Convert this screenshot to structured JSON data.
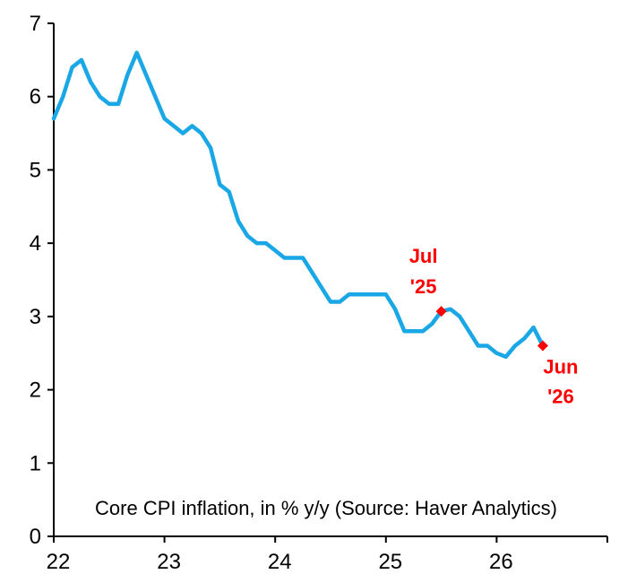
{
  "chart_data": {
    "type": "line",
    "title": "",
    "xlabel": "",
    "ylabel": "",
    "note": "Core CPI inflation, in % y/y (Source: Haver Analytics)",
    "x_ticks": [
      "22",
      "23",
      "24",
      "25",
      "26"
    ],
    "y_ticks": [
      "0",
      "1",
      "2",
      "3",
      "4",
      "5",
      "6",
      "7"
    ],
    "xlim": [
      2022.0,
      2027.0
    ],
    "ylim": [
      0,
      7
    ],
    "grid": false,
    "legend": "none",
    "colors": {
      "line": "#1aa7e6",
      "marker": "#ff0000",
      "axis": "#000000"
    },
    "series": [
      {
        "x": [
          2022.0,
          2022.083,
          2022.167,
          2022.25,
          2022.333,
          2022.417,
          2022.5,
          2022.583,
          2022.667,
          2022.75,
          2022.833,
          2022.917,
          2023.0,
          2023.083,
          2023.167,
          2023.25,
          2023.333,
          2023.417,
          2023.5,
          2023.583,
          2023.667,
          2023.75,
          2023.833,
          2023.917,
          2024.0,
          2024.083,
          2024.167,
          2024.25,
          2024.333,
          2024.417,
          2024.5,
          2024.583,
          2024.667,
          2024.75,
          2024.833,
          2024.917,
          2025.0,
          2025.083,
          2025.167,
          2025.25,
          2025.333,
          2025.417,
          2025.5,
          2025.583,
          2025.667,
          2025.75,
          2025.833,
          2025.917,
          2026.0,
          2026.083,
          2026.167,
          2026.25,
          2026.333,
          2026.417
        ],
        "values": [
          5.7,
          6.0,
          6.4,
          6.5,
          6.2,
          6.0,
          5.9,
          5.9,
          6.3,
          6.6,
          6.3,
          6.0,
          5.7,
          5.6,
          5.5,
          5.6,
          5.5,
          5.3,
          4.8,
          4.7,
          4.3,
          4.1,
          4.0,
          4.0,
          3.9,
          3.8,
          3.8,
          3.8,
          3.6,
          3.4,
          3.2,
          3.2,
          3.3,
          3.3,
          3.3,
          3.3,
          3.3,
          3.1,
          2.8,
          2.8,
          2.8,
          2.9,
          3.07,
          3.1,
          3.0,
          2.8,
          2.6,
          2.6,
          2.5,
          2.45,
          2.6,
          2.7,
          2.85,
          2.6
        ]
      }
    ],
    "annotations": [
      {
        "line1": "Jul",
        "line2": "'25",
        "x": 2025.5,
        "y": 3.07,
        "label_side": "above"
      },
      {
        "line1": "Jun",
        "line2": "'26",
        "x": 2026.417,
        "y": 2.6,
        "label_side": "below"
      }
    ]
  }
}
